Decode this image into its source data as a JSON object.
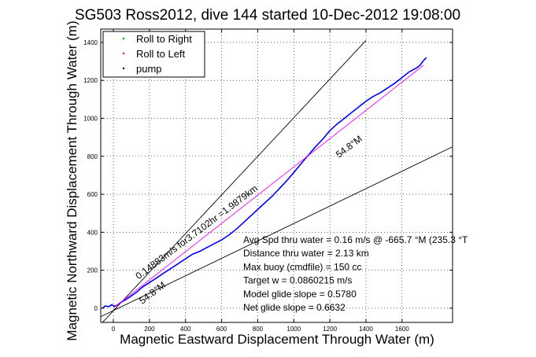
{
  "chart_data": {
    "type": "line",
    "title": "SG503 Ross2012, dive 144 started 10-Dec-2012 19:08:00",
    "xlabel": "Magnetic Eastward Displacement Through Water (m)",
    "ylabel": "Magnetic Northward Displacement Through Water (m)",
    "xlim": [
      -70,
      1880
    ],
    "ylim": [
      -75,
      1470
    ],
    "xticks": [
      0,
      200,
      400,
      600,
      800,
      1000,
      1200,
      1400,
      1600
    ],
    "yticks": [
      0,
      200,
      400,
      600,
      800,
      1000,
      1200,
      1400
    ],
    "grid": true,
    "legend_position": "top-left",
    "legend": [
      {
        "label": "Roll to Right",
        "color": "#00aa00",
        "marker": "."
      },
      {
        "label": "Roll to Left",
        "color": "#ff0000",
        "marker": "."
      },
      {
        "label": "pump",
        "color": "#000000",
        "marker": "."
      }
    ],
    "series": [
      {
        "color": "#0000ff",
        "x": [
          -60,
          -45,
          -25,
          -10,
          5,
          20,
          40,
          70,
          100,
          130,
          160,
          200,
          240,
          280,
          320,
          360,
          400,
          440,
          480,
          520,
          560,
          600,
          640,
          680,
          720,
          760,
          800,
          840,
          880,
          920,
          960,
          1000,
          1040,
          1080,
          1120,
          1160,
          1200,
          1240,
          1280,
          1320,
          1360,
          1400,
          1440,
          1480,
          1520,
          1560,
          1600,
          1640,
          1680,
          1700,
          1720,
          1735
        ],
        "y": [
          0,
          12,
          8,
          18,
          10,
          15,
          30,
          45,
          65,
          85,
          110,
          135,
          160,
          185,
          210,
          235,
          260,
          285,
          300,
          320,
          340,
          360,
          385,
          415,
          450,
          485,
          520,
          555,
          590,
          630,
          670,
          715,
          760,
          805,
          850,
          890,
          935,
          970,
          1000,
          1030,
          1060,
          1090,
          1115,
          1135,
          1160,
          1185,
          1215,
          1245,
          1265,
          1280,
          1305,
          1320
        ]
      },
      {
        "color": "#ff00ff",
        "x": [
          0,
          1720
        ],
        "y": [
          0,
          1280
        ]
      }
    ],
    "reference_lines": [
      {
        "color": "#000000",
        "x": [
          -70,
          1400
        ],
        "y": [
          -85,
          1410
        ]
      },
      {
        "color": "#000000",
        "x": [
          -70,
          1880
        ],
        "y": [
          -45,
          850
        ]
      }
    ],
    "annotations": [
      {
        "text": "0.14883m/s for3.7102hr =1.9879km",
        "x": 140,
        "y": 150,
        "rotation_deg": 37
      },
      {
        "text": "54.8°M",
        "x": 160,
        "y": 20,
        "rotation_deg": 37
      },
      {
        "text": "54.8°M",
        "x": 1250,
        "y": 790,
        "rotation_deg": 37
      }
    ],
    "stats": [
      {
        "text": "Avg Spd thru water =  0.16 m/s @ -665.7   °M (235.3 °T"
      },
      {
        "text": "Distance thru water =  2.13 km"
      },
      {
        "text": "Max buoy (cmdfile) = 150 cc"
      },
      {
        "text": "Target w = 0.0860215 m/s"
      },
      {
        "text": "Model glide slope = 0.5780"
      },
      {
        "text": "Net glide slope = 0.6632"
      }
    ]
  }
}
